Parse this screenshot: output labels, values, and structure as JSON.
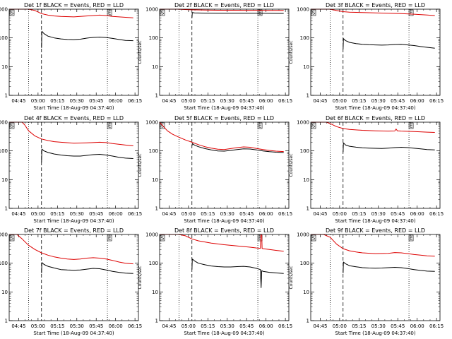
{
  "figure": {
    "background": "#ffffff"
  },
  "colors": {
    "events": "#000000",
    "lld": "#dd0000",
    "axes": "#000000"
  },
  "markers": {
    "start": "S",
    "end": "E"
  },
  "chart_data": [
    {
      "type": "line",
      "title": "Det 1f BLACK = Events, RED = LLD",
      "xlabel": "Start Time (18-Aug-09 04:37:40)",
      "ylabel": "Counts/sec",
      "x_ticks": [
        "04:45",
        "05:00",
        "05:15",
        "05:30",
        "05:45",
        "06:00",
        "06:15"
      ],
      "y_ticks": [
        "1",
        "10",
        "100",
        "1000"
      ],
      "yscale": "log",
      "x_range_min": [
        0,
        100
      ],
      "y_range": [
        1,
        1000
      ],
      "grid": false,
      "marker_S_min": 0,
      "marker_E_min": 76,
      "dotted_lines_min": [
        15,
        76
      ],
      "dashed_line_min": 25,
      "series": [
        {
          "name": "Events",
          "color": "#000000",
          "x": [
            25,
            25.3,
            27,
            30,
            35,
            40,
            45,
            50,
            55,
            60,
            65,
            70,
            75,
            80,
            85,
            90,
            96
          ],
          "y": [
            45,
            170,
            140,
            115,
            100,
            92,
            88,
            87,
            90,
            98,
            104,
            107,
            103,
            96,
            88,
            82,
            80
          ]
        },
        {
          "name": "LLD",
          "color": "#dd0000",
          "x": [
            0,
            5,
            10,
            15,
            20,
            25,
            30,
            35,
            40,
            50,
            60,
            70,
            75,
            80,
            90,
            96
          ],
          "y": [
            1000,
            1000,
            1000,
            1000,
            900,
            700,
            620,
            580,
            560,
            540,
            580,
            620,
            600,
            560,
            520,
            500
          ]
        }
      ]
    },
    {
      "type": "line",
      "title": "Det 2f BLACK = Events, RED = LLD",
      "xlabel": "Start Time (18-Aug-09 04:37:40)",
      "ylabel": "Counts/sec",
      "x_ticks": [
        "04:45",
        "05:00",
        "05:15",
        "05:30",
        "05:45",
        "06:00",
        "06:15"
      ],
      "y_ticks": [
        "1",
        "10",
        "100",
        "1000"
      ],
      "yscale": "log",
      "x_range_min": [
        0,
        100
      ],
      "y_range": [
        1,
        1000
      ],
      "grid": false,
      "marker_S_min": 0,
      "marker_E_min": 76,
      "dotted_lines_min": [
        15,
        76
      ],
      "dashed_line_min": 25,
      "series": [
        {
          "name": "Events",
          "color": "#000000",
          "x": [
            25,
            25.3,
            27,
            35,
            45,
            55,
            65,
            75,
            85,
            96
          ],
          "y": [
            500,
            760,
            740,
            730,
            725,
            720,
            720,
            720,
            715,
            710
          ]
        },
        {
          "name": "LLD",
          "color": "#dd0000",
          "x": [
            0,
            6,
            10,
            12,
            14,
            18,
            25,
            35,
            45,
            55,
            65,
            75,
            85,
            96
          ],
          "y": [
            1000,
            1000,
            1000,
            1000,
            1000,
            980,
            950,
            930,
            920,
            920,
            915,
            915,
            910,
            905
          ]
        }
      ]
    },
    {
      "type": "line",
      "title": "Det 3f BLACK = Events, RED = LLD",
      "xlabel": "Start Time (18-Aug-09 04:37:40)",
      "ylabel": "Counts/sec",
      "x_ticks": [
        "04:45",
        "05:00",
        "05:15",
        "05:30",
        "05:45",
        "06:00",
        "06:15"
      ],
      "y_ticks": [
        "1",
        "10",
        "100",
        "1000"
      ],
      "yscale": "log",
      "x_range_min": [
        0,
        100
      ],
      "y_range": [
        1,
        1000
      ],
      "grid": false,
      "marker_S_min": 0,
      "marker_E_min": 76,
      "dotted_lines_min": [
        15,
        76
      ],
      "dashed_line_min": 25,
      "series": [
        {
          "name": "Events",
          "color": "#000000",
          "x": [
            25,
            25.3,
            27,
            30,
            35,
            40,
            45,
            50,
            55,
            60,
            65,
            70,
            75,
            80,
            85,
            90,
            96
          ],
          "y": [
            40,
            95,
            80,
            70,
            63,
            60,
            58,
            57,
            56,
            57,
            59,
            60,
            57,
            54,
            50,
            47,
            44
          ]
        },
        {
          "name": "LLD",
          "color": "#dd0000",
          "x": [
            0,
            5,
            10,
            15,
            20,
            25,
            30,
            40,
            50,
            60,
            70,
            80,
            90,
            96
          ],
          "y": [
            1000,
            1000,
            1000,
            1000,
            900,
            820,
            790,
            760,
            740,
            720,
            700,
            670,
            630,
            600
          ]
        }
      ]
    },
    {
      "type": "line",
      "title": "Det 4f BLACK = Events, RED = LLD",
      "xlabel": "Start Time (18-Aug-09 04:37:40)",
      "ylabel": "Counts/sec",
      "x_ticks": [
        "04:45",
        "05:00",
        "05:15",
        "05:30",
        "05:45",
        "06:00",
        "06:15"
      ],
      "y_ticks": [
        "1",
        "10",
        "100",
        "1000"
      ],
      "yscale": "log",
      "x_range_min": [
        0,
        100
      ],
      "y_range": [
        1,
        1000
      ],
      "grid": false,
      "marker_S_min": 0,
      "marker_E_min": 76,
      "dotted_lines_min": [
        15,
        76
      ],
      "dashed_line_min": 25,
      "series": [
        {
          "name": "Events",
          "color": "#000000",
          "x": [
            25,
            25.3,
            27,
            30,
            35,
            40,
            45,
            50,
            55,
            60,
            65,
            70,
            75,
            80,
            85,
            90,
            96
          ],
          "y": [
            40,
            115,
            100,
            88,
            78,
            72,
            68,
            66,
            66,
            70,
            74,
            76,
            72,
            66,
            60,
            56,
            54
          ]
        },
        {
          "name": "LLD",
          "color": "#dd0000",
          "x": [
            0,
            6,
            10,
            12,
            15,
            20,
            25,
            30,
            35,
            40,
            50,
            60,
            70,
            75,
            80,
            90,
            96
          ],
          "y": [
            1000,
            1000,
            1000,
            800,
            500,
            330,
            260,
            230,
            210,
            200,
            185,
            190,
            200,
            195,
            180,
            160,
            150
          ]
        }
      ]
    },
    {
      "type": "line",
      "title": "Det 5f BLACK = Events, RED = LLD",
      "xlabel": "Start Time (18-Aug-09 04:37:40)",
      "ylabel": "Counts/sec",
      "x_ticks": [
        "04:45",
        "05:00",
        "05:15",
        "05:30",
        "05:45",
        "06:00",
        "06:15"
      ],
      "y_ticks": [
        "1",
        "10",
        "100",
        "1000"
      ],
      "yscale": "log",
      "x_range_min": [
        0,
        100
      ],
      "y_range": [
        1,
        1000
      ],
      "grid": false,
      "marker_S_min": 0,
      "marker_E_min": 76,
      "dotted_lines_min": [
        15,
        76
      ],
      "dashed_line_min": 25,
      "series": [
        {
          "name": "Events",
          "color": "#000000",
          "x": [
            25,
            25.3,
            27,
            30,
            35,
            40,
            45,
            50,
            55,
            60,
            65,
            70,
            75,
            80,
            85,
            90,
            96
          ],
          "y": [
            150,
            180,
            160,
            140,
            120,
            108,
            100,
            98,
            104,
            112,
            118,
            116,
            108,
            100,
            94,
            90,
            88
          ]
        },
        {
          "name": "LLD",
          "color": "#dd0000",
          "x": [
            0,
            3,
            6,
            10,
            15,
            20,
            25,
            30,
            35,
            40,
            45,
            50,
            55,
            60,
            65,
            70,
            75,
            80,
            85,
            90,
            96
          ],
          "y": [
            1000,
            700,
            500,
            380,
            300,
            240,
            200,
            165,
            140,
            125,
            115,
            112,
            120,
            130,
            138,
            134,
            122,
            112,
            104,
            98,
            95
          ]
        }
      ]
    },
    {
      "type": "line",
      "title": "Det 6f BLACK = Events, RED = LLD",
      "xlabel": "Start Time (18-Aug-09 04:37:40)",
      "ylabel": "Counts/sec",
      "x_ticks": [
        "04:45",
        "05:00",
        "05:15",
        "05:30",
        "05:45",
        "06:00",
        "06:15"
      ],
      "y_ticks": [
        "1",
        "10",
        "100",
        "1000"
      ],
      "yscale": "log",
      "x_range_min": [
        0,
        100
      ],
      "y_range": [
        1,
        1000
      ],
      "grid": false,
      "marker_S_min": 0,
      "marker_E_min": 76,
      "dotted_lines_min": [
        15,
        76
      ],
      "dashed_line_min": 25,
      "series": [
        {
          "name": "Events",
          "color": "#000000",
          "x": [
            25,
            25.3,
            27,
            30,
            35,
            40,
            45,
            50,
            55,
            60,
            65,
            70,
            75,
            80,
            85,
            90,
            96
          ],
          "y": [
            90,
            190,
            160,
            145,
            135,
            128,
            125,
            123,
            122,
            125,
            130,
            134,
            130,
            124,
            118,
            112,
            108
          ]
        },
        {
          "name": "LLD",
          "color": "#dd0000",
          "x": [
            0,
            5,
            8,
            10,
            12,
            15,
            20,
            25,
            30,
            40,
            50,
            60,
            65,
            66,
            67,
            70,
            80,
            90,
            96
          ],
          "y": [
            1000,
            1000,
            1000,
            1000,
            1000,
            900,
            700,
            600,
            560,
            520,
            500,
            490,
            495,
            580,
            500,
            490,
            470,
            450,
            440
          ]
        }
      ]
    },
    {
      "type": "line",
      "title": "Det 7f BLACK = Events, RED = LLD",
      "xlabel": "Start Time (18-Aug-09 04:37:40)",
      "ylabel": "Counts/sec",
      "x_ticks": [
        "04:45",
        "05:00",
        "05:15",
        "05:30",
        "05:45",
        "06:00",
        "06:15"
      ],
      "y_ticks": [
        "1",
        "10",
        "100",
        "1000"
      ],
      "yscale": "log",
      "x_range_min": [
        0,
        100
      ],
      "y_range": [
        1,
        1000
      ],
      "grid": false,
      "marker_S_min": 0,
      "marker_E_min": 76,
      "dotted_lines_min": [
        15,
        76
      ],
      "dashed_line_min": 25,
      "series": [
        {
          "name": "Events",
          "color": "#000000",
          "x": [
            25,
            25.3,
            27,
            30,
            35,
            40,
            45,
            50,
            55,
            60,
            65,
            70,
            75,
            80,
            85,
            90,
            96
          ],
          "y": [
            45,
            105,
            90,
            78,
            68,
            60,
            58,
            57,
            58,
            62,
            66,
            64,
            58,
            52,
            48,
            45,
            44
          ]
        },
        {
          "name": "LLD",
          "color": "#dd0000",
          "x": [
            0,
            6,
            10,
            15,
            20,
            25,
            30,
            35,
            40,
            45,
            50,
            55,
            60,
            65,
            70,
            75,
            80,
            85,
            90,
            96
          ],
          "y": [
            1000,
            1000,
            700,
            420,
            300,
            230,
            190,
            165,
            150,
            140,
            135,
            140,
            150,
            155,
            150,
            140,
            125,
            110,
            100,
            95
          ]
        }
      ]
    },
    {
      "type": "line",
      "title": "Det 8f BLACK = Events, RED = LLD",
      "xlabel": "Start Time (18-Aug-09 04:37:40)",
      "ylabel": "Counts/sec",
      "x_ticks": [
        "04:45",
        "05:00",
        "05:15",
        "05:30",
        "05:45",
        "06:00",
        "06:15"
      ],
      "y_ticks": [
        "1",
        "10",
        "100",
        "1000"
      ],
      "yscale": "log",
      "x_range_min": [
        0,
        100
      ],
      "y_range": [
        1,
        1000
      ],
      "grid": false,
      "marker_S_min": 0,
      "marker_E_min": 76,
      "dotted_lines_min": [
        15,
        76
      ],
      "dashed_line_min": 25,
      "series": [
        {
          "name": "Events",
          "color": "#000000",
          "x": [
            25,
            25.3,
            27,
            30,
            35,
            40,
            45,
            50,
            55,
            60,
            65,
            70,
            75,
            78,
            78.5,
            79,
            80,
            85,
            90,
            96
          ],
          "y": [
            60,
            140,
            120,
            100,
            88,
            80,
            76,
            74,
            74,
            76,
            78,
            74,
            66,
            60,
            14,
            55,
            52,
            48,
            46,
            44
          ]
        },
        {
          "name": "LLD",
          "color": "#dd0000",
          "x": [
            0,
            5,
            10,
            15,
            20,
            25,
            30,
            40,
            50,
            60,
            70,
            75,
            78,
            78.3,
            79,
            79.3,
            80,
            85,
            90,
            96
          ],
          "y": [
            1000,
            1000,
            1000,
            1000,
            900,
            700,
            600,
            500,
            440,
            400,
            360,
            340,
            330,
            1000,
            1000,
            330,
            320,
            300,
            280,
            260
          ]
        }
      ]
    },
    {
      "type": "line",
      "title": "Det 9f BLACK = Events, RED = LLD",
      "xlabel": "Start Time (18-Aug-09 04:37:40)",
      "ylabel": "Counts/sec",
      "x_ticks": [
        "04:45",
        "05:00",
        "05:15",
        "05:30",
        "05:45",
        "06:00",
        "06:15"
      ],
      "y_ticks": [
        "1",
        "10",
        "100",
        "1000"
      ],
      "yscale": "log",
      "x_range_min": [
        0,
        100
      ],
      "y_range": [
        1,
        1000
      ],
      "grid": false,
      "marker_S_min": 0,
      "marker_E_min": 76,
      "dotted_lines_min": [
        15,
        76
      ],
      "dashed_line_min": 25,
      "series": [
        {
          "name": "Events",
          "color": "#000000",
          "x": [
            25,
            25.3,
            27,
            30,
            35,
            40,
            45,
            50,
            55,
            60,
            65,
            70,
            75,
            80,
            85,
            90,
            96
          ],
          "y": [
            45,
            110,
            95,
            82,
            75,
            70,
            68,
            67,
            68,
            70,
            72,
            70,
            65,
            60,
            56,
            53,
            52
          ]
        },
        {
          "name": "LLD",
          "color": "#dd0000",
          "x": [
            0,
            5,
            10,
            15,
            20,
            25,
            30,
            35,
            40,
            50,
            60,
            65,
            70,
            75,
            80,
            85,
            90,
            96
          ],
          "y": [
            1000,
            1000,
            1000,
            800,
            460,
            320,
            270,
            245,
            230,
            215,
            220,
            235,
            230,
            215,
            200,
            190,
            180,
            175
          ]
        }
      ]
    }
  ]
}
